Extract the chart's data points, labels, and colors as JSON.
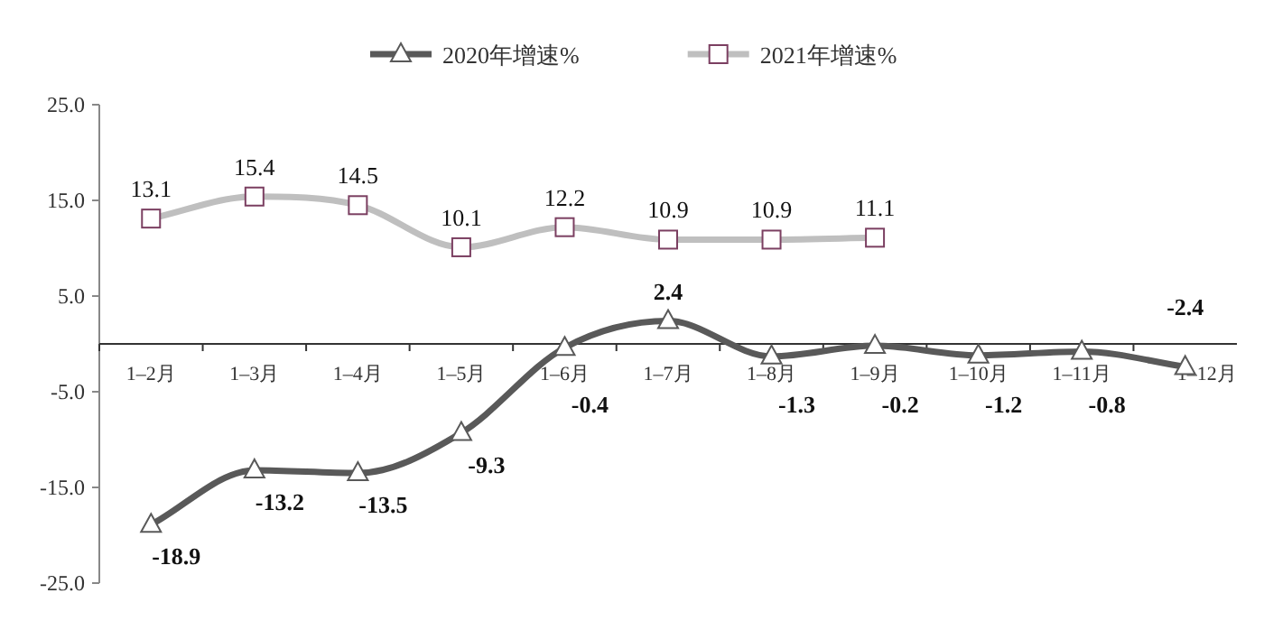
{
  "chart_data": {
    "type": "line",
    "categories": [
      "1–2月",
      "1–3月",
      "1–4月",
      "1–5月",
      "1–6月",
      "1–7月",
      "1–8月",
      "1–9月",
      "1–10月",
      "1–11月",
      "1–12月"
    ],
    "series": [
      {
        "name": "2020年增速%",
        "color": "#595959",
        "marker": "triangle",
        "values": [
          -18.9,
          -13.2,
          -13.5,
          -9.3,
          -0.4,
          2.4,
          -1.3,
          -0.2,
          -1.2,
          -0.8,
          -2.4
        ]
      },
      {
        "name": "2021年增速%",
        "color": "#bfbfbf",
        "marker": "square",
        "values": [
          13.1,
          15.4,
          14.5,
          10.1,
          12.2,
          10.9,
          10.9,
          11.1,
          null,
          null,
          null
        ]
      }
    ],
    "ylim": [
      -25,
      25
    ],
    "yticks": [
      {
        "value": -25,
        "label": "-25.0"
      },
      {
        "value": -15,
        "label": "-15.0"
      },
      {
        "value": -5,
        "label": "-5.0"
      },
      {
        "value": 5,
        "label": "5.0"
      },
      {
        "value": 15,
        "label": "15.0"
      },
      {
        "value": 25,
        "label": "25.0"
      }
    ],
    "data_labels": true,
    "legend": "top",
    "grid": false
  }
}
